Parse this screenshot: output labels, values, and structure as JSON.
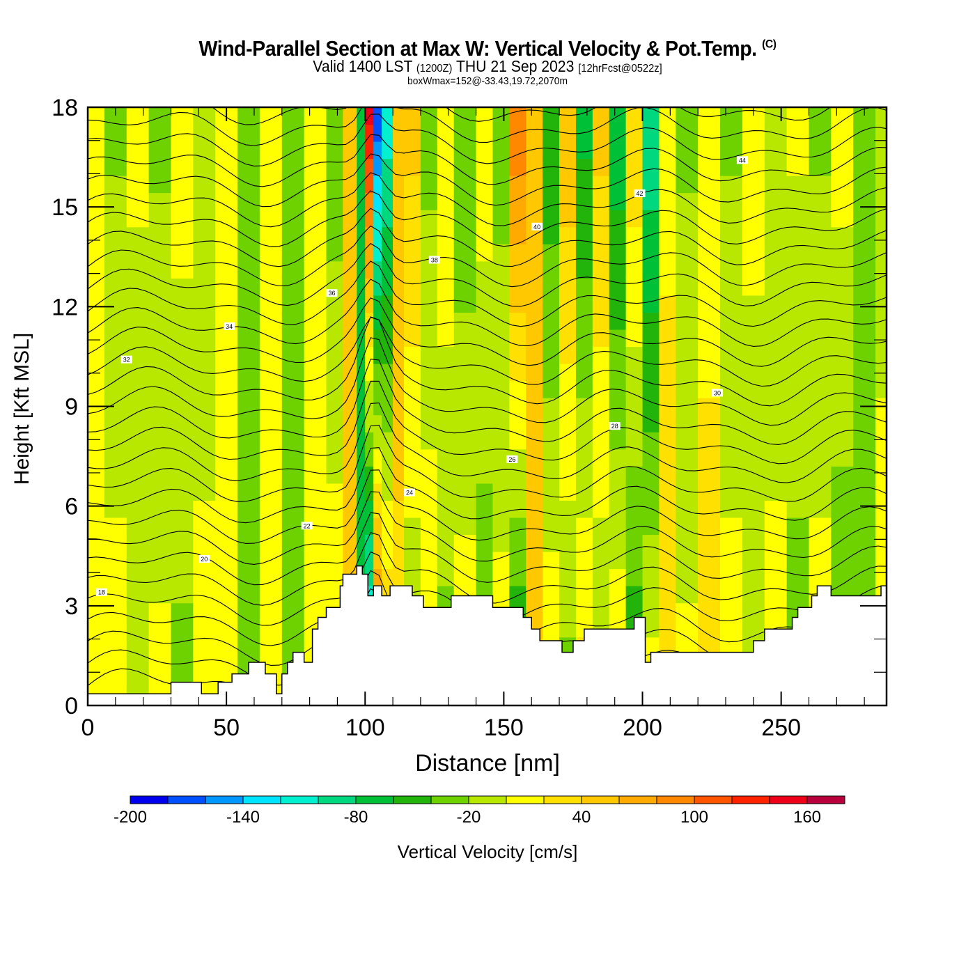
{
  "header": {
    "title": "Wind-Parallel Section at Max W: Vertical Velocity & Pot.Temp.",
    "copyright": "(C)",
    "valid_prefix": "Valid 1400 LST",
    "valid_utc": "(1200Z)",
    "valid_date": "THU 21 Sep 2023",
    "forecast": "[12hrFcst@0522z]",
    "box_wmax": "boxWmax=152@-33.43,19.72,2070m"
  },
  "chart_data": {
    "type": "heatmap",
    "title": "Wind-Parallel Section at Max W: Vertical Velocity & Pot.Temp.",
    "xlabel": "Distance [nm]",
    "ylabel": "Height [Kft MSL]",
    "xlim": [
      0,
      288
    ],
    "ylim": [
      0,
      18
    ],
    "x_ticks": [
      0,
      50,
      100,
      150,
      200,
      250
    ],
    "y_ticks": [
      0,
      3,
      6,
      9,
      12,
      15,
      18
    ],
    "x_tick_labels": [
      "0",
      "50",
      "100",
      "150",
      "200",
      "250"
    ],
    "y_tick_labels": [
      "0",
      "3",
      "6",
      "9",
      "12",
      "15",
      "18"
    ],
    "colorbar": {
      "label": "Vertical Velocity [cm/s]",
      "levels": [
        -200,
        -180,
        -160,
        -140,
        -120,
        -100,
        -80,
        -60,
        -40,
        -20,
        0,
        20,
        40,
        60,
        80,
        100,
        120,
        140,
        160,
        180
      ],
      "tick_labels": [
        "-200",
        "-140",
        "-80",
        "-20",
        "40",
        "100",
        "160"
      ],
      "colors": [
        "#0000ee",
        "#0050ff",
        "#0098ff",
        "#00e4ff",
        "#00f0d0",
        "#00d880",
        "#00c038",
        "#22b40a",
        "#6ed200",
        "#b8e800",
        "#ffff00",
        "#ffe000",
        "#ffc800",
        "#ffaa00",
        "#ff8800",
        "#ff5500",
        "#ff2200",
        "#ee0018",
        "#b8003c"
      ]
    },
    "wmax_cm_s": 152,
    "terrain_kft": {
      "x": [
        0,
        15,
        30,
        41,
        47,
        52,
        58,
        64,
        68,
        70,
        72,
        74,
        78,
        81,
        83,
        86,
        91,
        92,
        97,
        99,
        101,
        103,
        104,
        106,
        109,
        117,
        121,
        126,
        131,
        137,
        146,
        157,
        160,
        163,
        166,
        171,
        175,
        177,
        179,
        187,
        191,
        197,
        201,
        203,
        207,
        222,
        230,
        240,
        243,
        244,
        252,
        254,
        256,
        261,
        263,
        268,
        271,
        286,
        288
      ],
      "y": [
        0.35,
        0.35,
        0.7,
        0.35,
        0.7,
        0.95,
        1.3,
        0.95,
        0.35,
        0.95,
        1.3,
        1.6,
        1.3,
        2.3,
        2.65,
        2.95,
        3.6,
        3.95,
        4.2,
        3.95,
        3.3,
        3.6,
        3.6,
        3.3,
        3.6,
        3.3,
        2.95,
        2.95,
        3.3,
        3.3,
        2.95,
        2.65,
        2.3,
        1.95,
        1.95,
        1.6,
        1.95,
        1.95,
        2.3,
        2.3,
        2.3,
        2.65,
        1.3,
        1.6,
        1.6,
        1.6,
        1.6,
        1.95,
        1.95,
        2.3,
        2.3,
        2.65,
        2.95,
        3.3,
        3.6,
        3.3,
        3.3,
        3.6,
        3.6
      ]
    },
    "w_columns": {
      "x": [
        0,
        6,
        14,
        22,
        30,
        38,
        46,
        54,
        62,
        70,
        78,
        86,
        92,
        97,
        100,
        103,
        106,
        110,
        114,
        120,
        126,
        132,
        140,
        146,
        152,
        158,
        164,
        170,
        176,
        182,
        188,
        194,
        200,
        206,
        212,
        220,
        228,
        236,
        244,
        252,
        260,
        268,
        276,
        284,
        288
      ],
      "w_cm_s_upper": [
        5,
        -25,
        5,
        -25,
        10,
        -20,
        5,
        -25,
        5,
        -30,
        10,
        -35,
        40,
        -60,
        150,
        -180,
        -120,
        60,
        50,
        -30,
        20,
        -40,
        15,
        -30,
        100,
        40,
        -60,
        60,
        -70,
        50,
        -80,
        40,
        -100,
        15,
        -25,
        10,
        -25,
        10,
        -20,
        5,
        -25,
        10,
        -30,
        -10,
        -20
      ],
      "w_cm_s_lower": [
        5,
        10,
        -20,
        5,
        -25,
        10,
        5,
        -25,
        5,
        -20,
        15,
        20,
        40,
        -80,
        -160,
        130,
        60,
        30,
        -20,
        20,
        -30,
        15,
        -40,
        10,
        -70,
        40,
        20,
        -30,
        30,
        -20,
        20,
        -60,
        10,
        30,
        5,
        30,
        10,
        -20,
        10,
        -30,
        10,
        -40,
        -30,
        10,
        5
      ]
    },
    "theta_contours": {
      "label": "Pot.Temp.",
      "interval": 2,
      "visible_labels": [
        18,
        20,
        22,
        24,
        26,
        28,
        30,
        32,
        34,
        36,
        38,
        40,
        42,
        44
      ]
    }
  }
}
